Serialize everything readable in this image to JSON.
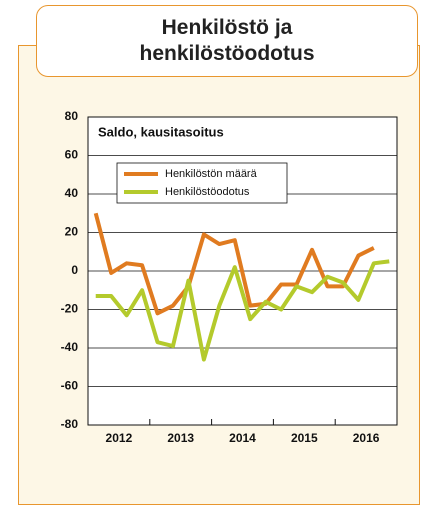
{
  "chart_data": {
    "type": "line",
    "title": "Henkilöstö ja henkilöstöodotus",
    "subtitle": "Saldo, kausitasoitus",
    "xtick_labels": [
      "2012",
      "2013",
      "2014",
      "2015",
      "2016"
    ],
    "series": [
      {
        "name": "Henkilöstön määrä",
        "color": "#e07b20",
        "values": [
          30,
          -1,
          4,
          3,
          -22,
          -18,
          -8,
          19,
          14,
          16,
          -18,
          -17,
          -7,
          -7,
          11,
          -8,
          -8,
          8,
          12,
          null
        ]
      },
      {
        "name": "Henkilöstöodotus",
        "color": "#b4ca2c",
        "values": [
          -13,
          -13,
          -23,
          -10,
          -37,
          -39,
          -5,
          -46,
          -18,
          2,
          -25,
          -16,
          -20,
          -8,
          -11,
          -3,
          -6,
          -15,
          4,
          5
        ]
      }
    ],
    "ylim": [
      -80,
      80
    ],
    "yticks": [
      -80,
      -60,
      -40,
      -20,
      0,
      20,
      40,
      60,
      80
    ],
    "grid": true
  }
}
